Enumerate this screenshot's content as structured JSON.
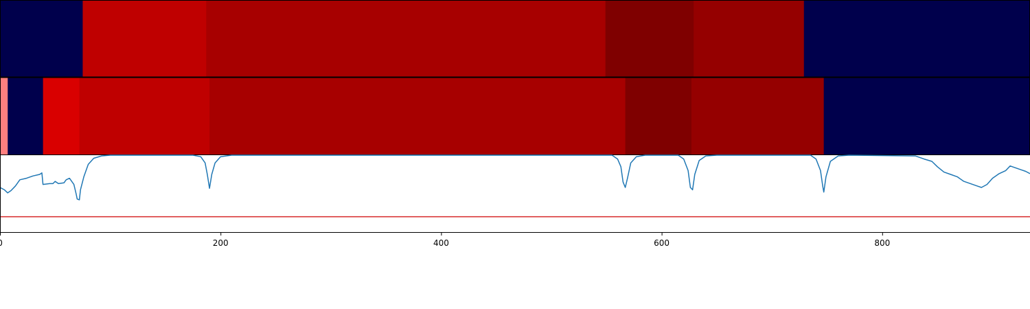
{
  "chart_data": [
    {
      "type": "heatmap",
      "xlim": [
        0,
        934
      ],
      "segments": [
        {
          "start": 0,
          "end": 75,
          "color": "#00004c"
        },
        {
          "start": 75,
          "end": 187,
          "color": "#bf0000"
        },
        {
          "start": 187,
          "end": 549,
          "color": "#a70000"
        },
        {
          "start": 549,
          "end": 629,
          "color": "#7f0000"
        },
        {
          "start": 629,
          "end": 729,
          "color": "#950000"
        },
        {
          "start": 729,
          "end": 934,
          "color": "#00004c"
        }
      ]
    },
    {
      "type": "heatmap",
      "xlim": [
        0,
        934
      ],
      "segments": [
        {
          "start": 0,
          "end": 7,
          "color": "#ff7f7f"
        },
        {
          "start": 7,
          "end": 39,
          "color": "#00004c"
        },
        {
          "start": 39,
          "end": 72,
          "color": "#d90000"
        },
        {
          "start": 72,
          "end": 190,
          "color": "#bf0000"
        },
        {
          "start": 190,
          "end": 567,
          "color": "#a70000"
        },
        {
          "start": 567,
          "end": 627,
          "color": "#7f0000"
        },
        {
          "start": 627,
          "end": 747,
          "color": "#950000"
        },
        {
          "start": 747,
          "end": 934,
          "color": "#00004c"
        }
      ]
    },
    {
      "type": "line",
      "xlim": [
        0,
        934
      ],
      "ylim": [
        0,
        1
      ],
      "series": [
        {
          "color": "#1f77b4",
          "points": [
            [
              0,
              0.58
            ],
            [
              4,
              0.55
            ],
            [
              7,
              0.51
            ],
            [
              10,
              0.54
            ],
            [
              14,
              0.6
            ],
            [
              18,
              0.68
            ],
            [
              24,
              0.7
            ],
            [
              30,
              0.73
            ],
            [
              36,
              0.75
            ],
            [
              38,
              0.77
            ],
            [
              39,
              0.62
            ],
            [
              45,
              0.63
            ],
            [
              48,
              0.63
            ],
            [
              50,
              0.66
            ],
            [
              53,
              0.63
            ],
            [
              58,
              0.64
            ],
            [
              60,
              0.68
            ],
            [
              63,
              0.7
            ],
            [
              67,
              0.62
            ],
            [
              69,
              0.5
            ],
            [
              70,
              0.43
            ],
            [
              72,
              0.42
            ],
            [
              73,
              0.55
            ],
            [
              76,
              0.72
            ],
            [
              80,
              0.88
            ],
            [
              85,
              0.96
            ],
            [
              92,
              0.99
            ],
            [
              100,
              1.0
            ],
            [
              175,
              1.0
            ],
            [
              182,
              0.98
            ],
            [
              186,
              0.9
            ],
            [
              188,
              0.75
            ],
            [
              190,
              0.57
            ],
            [
              192,
              0.75
            ],
            [
              195,
              0.9
            ],
            [
              200,
              0.98
            ],
            [
              210,
              1.0
            ],
            [
              555,
              1.0
            ],
            [
              560,
              0.95
            ],
            [
              563,
              0.85
            ],
            [
              565,
              0.65
            ],
            [
              567,
              0.58
            ],
            [
              569,
              0.7
            ],
            [
              572,
              0.9
            ],
            [
              577,
              0.98
            ],
            [
              585,
              1.0
            ],
            [
              615,
              1.0
            ],
            [
              620,
              0.95
            ],
            [
              624,
              0.8
            ],
            [
              626,
              0.58
            ],
            [
              628,
              0.55
            ],
            [
              630,
              0.75
            ],
            [
              634,
              0.93
            ],
            [
              640,
              0.99
            ],
            [
              650,
              1.0
            ],
            [
              735,
              1.0
            ],
            [
              740,
              0.95
            ],
            [
              744,
              0.8
            ],
            [
              746,
              0.6
            ],
            [
              747,
              0.52
            ],
            [
              749,
              0.72
            ],
            [
              753,
              0.92
            ],
            [
              760,
              0.99
            ],
            [
              770,
              1.0
            ],
            [
              830,
              0.99
            ],
            [
              838,
              0.95
            ],
            [
              845,
              0.92
            ],
            [
              850,
              0.85
            ],
            [
              856,
              0.78
            ],
            [
              862,
              0.75
            ],
            [
              868,
              0.72
            ],
            [
              874,
              0.66
            ],
            [
              880,
              0.63
            ],
            [
              886,
              0.6
            ],
            [
              890,
              0.58
            ],
            [
              895,
              0.62
            ],
            [
              900,
              0.7
            ],
            [
              906,
              0.76
            ],
            [
              912,
              0.8
            ],
            [
              916,
              0.86
            ],
            [
              920,
              0.84
            ],
            [
              926,
              0.81
            ],
            [
              930,
              0.79
            ],
            [
              934,
              0.76
            ]
          ]
        }
      ],
      "reference_line": {
        "y": 0.2,
        "color": "#d62728"
      },
      "xticks": [
        0,
        200,
        400,
        600,
        800
      ],
      "xtick_labels": [
        "0",
        "200",
        "400",
        "600",
        "800"
      ]
    }
  ]
}
